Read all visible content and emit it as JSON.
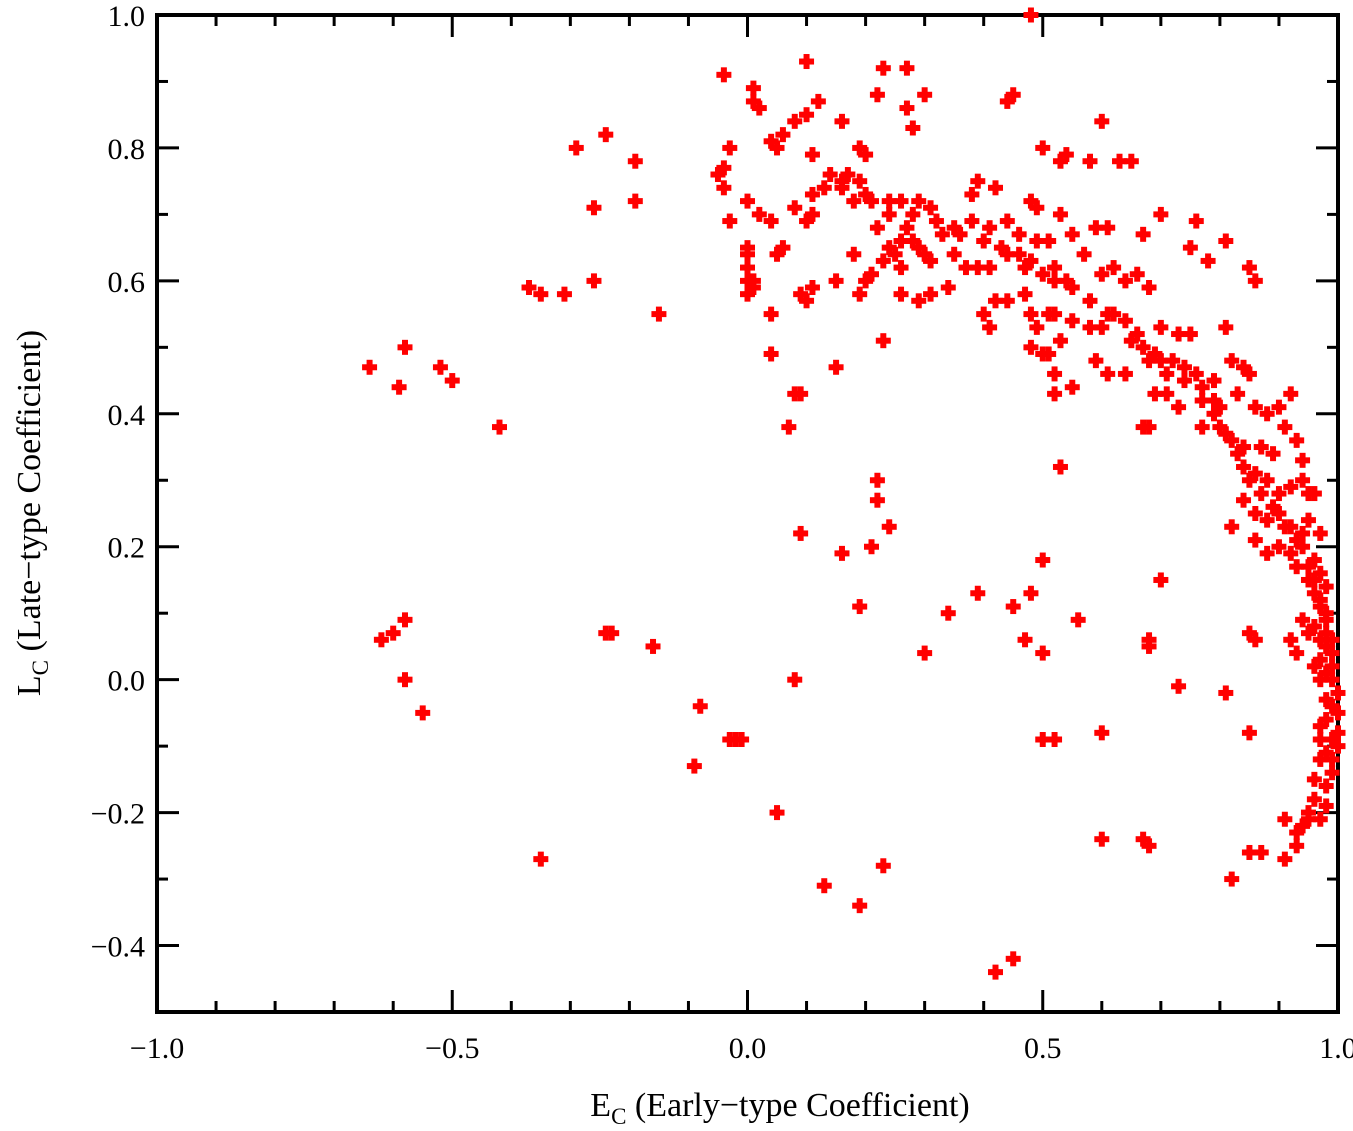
{
  "chart_data": {
    "type": "scatter",
    "title": "",
    "xlabel_main": "E",
    "xlabel_sub": "C",
    "xlabel_rest": " (Early−type Coefficient)",
    "ylabel_main": "L",
    "ylabel_sub": "C",
    "ylabel_rest": " (Late−type Coefficient)",
    "xlim": [
      -1.0,
      1.0
    ],
    "ylim": [
      -0.5,
      1.0
    ],
    "grid": false,
    "marker_color": "#ff0000",
    "marker": "plus",
    "x_ticks_major": [
      -1.0,
      -0.5,
      0.0,
      0.5,
      1.0
    ],
    "x_tick_labels": [
      "−1.0",
      "−0.5",
      "0.0",
      "0.5",
      "1.0"
    ],
    "y_ticks_major": [
      -0.4,
      -0.2,
      0.0,
      0.2,
      0.4,
      0.6,
      0.8,
      1.0
    ],
    "y_tick_labels": [
      "−0.4",
      "−0.2",
      "0.0",
      "0.2",
      "0.4",
      "0.6",
      "0.8",
      "1.0"
    ],
    "points": [
      [
        0.48,
        1.0
      ],
      [
        -0.04,
        0.91
      ],
      [
        0.1,
        0.93
      ],
      [
        0.23,
        0.92
      ],
      [
        0.27,
        0.92
      ],
      [
        0.01,
        0.89
      ],
      [
        0.01,
        0.87
      ],
      [
        0.02,
        0.86
      ],
      [
        0.12,
        0.87
      ],
      [
        0.1,
        0.85
      ],
      [
        0.22,
        0.88
      ],
      [
        0.3,
        0.88
      ],
      [
        0.45,
        0.88
      ],
      [
        0.44,
        0.87
      ],
      [
        0.27,
        0.86
      ],
      [
        0.08,
        0.84
      ],
      [
        0.06,
        0.82
      ],
      [
        0.04,
        0.81
      ],
      [
        0.16,
        0.84
      ],
      [
        0.28,
        0.83
      ],
      [
        0.6,
        0.84
      ],
      [
        0.05,
        0.8
      ],
      [
        -0.03,
        0.8
      ],
      [
        0.11,
        0.79
      ],
      [
        0.19,
        0.8
      ],
      [
        0.2,
        0.79
      ],
      [
        0.5,
        0.8
      ],
      [
        0.54,
        0.79
      ],
      [
        0.53,
        0.78
      ],
      [
        0.58,
        0.78
      ],
      [
        0.63,
        0.78
      ],
      [
        0.65,
        0.78
      ],
      [
        -0.29,
        0.8
      ],
      [
        -0.24,
        0.82
      ],
      [
        -0.19,
        0.78
      ],
      [
        -0.04,
        0.77
      ],
      [
        -0.05,
        0.76
      ],
      [
        0.14,
        0.76
      ],
      [
        0.17,
        0.76
      ],
      [
        0.19,
        0.75
      ],
      [
        0.16,
        0.74
      ],
      [
        -0.04,
        0.74
      ],
      [
        0.0,
        0.72
      ],
      [
        -0.26,
        0.71
      ],
      [
        -0.19,
        0.72
      ],
      [
        0.11,
        0.73
      ],
      [
        0.13,
        0.74
      ],
      [
        0.18,
        0.72
      ],
      [
        0.21,
        0.72
      ],
      [
        0.26,
        0.72
      ],
      [
        0.29,
        0.72
      ],
      [
        0.31,
        0.71
      ],
      [
        0.38,
        0.73
      ],
      [
        0.39,
        0.75
      ],
      [
        0.42,
        0.74
      ],
      [
        0.48,
        0.72
      ],
      [
        0.49,
        0.71
      ],
      [
        0.53,
        0.7
      ],
      [
        0.7,
        0.7
      ],
      [
        0.76,
        0.69
      ],
      [
        0.08,
        0.71
      ],
      [
        0.1,
        0.69
      ],
      [
        0.02,
        0.7
      ],
      [
        -0.03,
        0.69
      ],
      [
        0.04,
        0.69
      ],
      [
        0.11,
        0.7
      ],
      [
        0.22,
        0.68
      ],
      [
        0.24,
        0.7
      ],
      [
        0.27,
        0.68
      ],
      [
        0.28,
        0.66
      ],
      [
        0.25,
        0.64
      ],
      [
        0.23,
        0.63
      ],
      [
        0.26,
        0.62
      ],
      [
        0.33,
        0.67
      ],
      [
        0.35,
        0.68
      ],
      [
        0.38,
        0.69
      ],
      [
        0.41,
        0.68
      ],
      [
        0.44,
        0.69
      ],
      [
        0.46,
        0.67
      ],
      [
        0.49,
        0.66
      ],
      [
        0.51,
        0.66
      ],
      [
        0.55,
        0.67
      ],
      [
        0.59,
        0.68
      ],
      [
        0.61,
        0.68
      ],
      [
        0.67,
        0.67
      ],
      [
        0.81,
        0.66
      ],
      [
        0.75,
        0.65
      ],
      [
        0.78,
        0.63
      ],
      [
        0.0,
        0.65
      ],
      [
        0.0,
        0.64
      ],
      [
        0.0,
        0.62
      ],
      [
        0.01,
        0.6
      ],
      [
        0.01,
        0.59
      ],
      [
        0.0,
        0.58
      ],
      [
        0.0,
        0.6
      ],
      [
        0.06,
        0.65
      ],
      [
        0.05,
        0.64
      ],
      [
        0.11,
        0.59
      ],
      [
        0.09,
        0.58
      ],
      [
        0.1,
        0.57
      ],
      [
        0.18,
        0.64
      ],
      [
        0.2,
        0.6
      ],
      [
        0.19,
        0.58
      ],
      [
        0.21,
        0.61
      ],
      [
        0.24,
        0.65
      ],
      [
        0.26,
        0.66
      ],
      [
        0.29,
        0.65
      ],
      [
        0.3,
        0.64
      ],
      [
        0.31,
        0.63
      ],
      [
        0.35,
        0.64
      ],
      [
        0.37,
        0.62
      ],
      [
        0.39,
        0.62
      ],
      [
        0.41,
        0.62
      ],
      [
        0.43,
        0.65
      ],
      [
        0.46,
        0.64
      ],
      [
        0.47,
        0.62
      ],
      [
        0.5,
        0.61
      ],
      [
        0.52,
        0.62
      ],
      [
        0.54,
        0.6
      ],
      [
        0.57,
        0.64
      ],
      [
        0.6,
        0.61
      ],
      [
        0.62,
        0.62
      ],
      [
        0.64,
        0.6
      ],
      [
        0.66,
        0.61
      ],
      [
        0.68,
        0.59
      ],
      [
        0.85,
        0.62
      ],
      [
        0.86,
        0.6
      ],
      [
        -0.35,
        0.58
      ],
      [
        -0.37,
        0.59
      ],
      [
        -0.31,
        0.58
      ],
      [
        -0.26,
        0.6
      ],
      [
        -0.15,
        0.55
      ],
      [
        0.04,
        0.55
      ],
      [
        0.15,
        0.6
      ],
      [
        0.26,
        0.58
      ],
      [
        0.29,
        0.57
      ],
      [
        0.31,
        0.58
      ],
      [
        0.34,
        0.59
      ],
      [
        0.4,
        0.55
      ],
      [
        0.41,
        0.53
      ],
      [
        0.42,
        0.57
      ],
      [
        0.44,
        0.57
      ],
      [
        0.47,
        0.58
      ],
      [
        0.48,
        0.55
      ],
      [
        0.49,
        0.53
      ],
      [
        0.51,
        0.55
      ],
      [
        0.52,
        0.55
      ],
      [
        0.53,
        0.51
      ],
      [
        0.55,
        0.54
      ],
      [
        0.58,
        0.53
      ],
      [
        0.6,
        0.53
      ],
      [
        0.62,
        0.55
      ],
      [
        0.64,
        0.54
      ],
      [
        0.66,
        0.52
      ],
      [
        0.7,
        0.53
      ],
      [
        0.73,
        0.52
      ],
      [
        0.75,
        0.52
      ],
      [
        0.81,
        0.53
      ],
      [
        -0.64,
        0.47
      ],
      [
        -0.58,
        0.5
      ],
      [
        -0.59,
        0.44
      ],
      [
        -0.52,
        0.47
      ],
      [
        -0.5,
        0.45
      ],
      [
        -0.42,
        0.38
      ],
      [
        0.04,
        0.49
      ],
      [
        0.15,
        0.47
      ],
      [
        0.23,
        0.51
      ],
      [
        0.48,
        0.5
      ],
      [
        0.5,
        0.49
      ],
      [
        0.51,
        0.49
      ],
      [
        0.52,
        0.46
      ],
      [
        0.52,
        0.43
      ],
      [
        0.55,
        0.44
      ],
      [
        0.59,
        0.48
      ],
      [
        0.61,
        0.46
      ],
      [
        0.64,
        0.46
      ],
      [
        0.67,
        0.5
      ],
      [
        0.69,
        0.49
      ],
      [
        0.7,
        0.48
      ],
      [
        0.72,
        0.48
      ],
      [
        0.74,
        0.47
      ],
      [
        0.76,
        0.46
      ],
      [
        0.79,
        0.45
      ],
      [
        0.82,
        0.48
      ],
      [
        0.84,
        0.47
      ],
      [
        0.85,
        0.46
      ],
      [
        0.09,
        0.43
      ],
      [
        0.08,
        0.43
      ],
      [
        0.07,
        0.38
      ],
      [
        0.69,
        0.43
      ],
      [
        0.71,
        0.43
      ],
      [
        0.73,
        0.41
      ],
      [
        0.77,
        0.42
      ],
      [
        0.79,
        0.42
      ],
      [
        0.8,
        0.41
      ],
      [
        0.83,
        0.43
      ],
      [
        0.86,
        0.41
      ],
      [
        0.88,
        0.4
      ],
      [
        0.9,
        0.41
      ],
      [
        0.92,
        0.43
      ],
      [
        0.67,
        0.38
      ],
      [
        0.68,
        0.38
      ],
      [
        0.77,
        0.38
      ],
      [
        0.8,
        0.38
      ],
      [
        0.82,
        0.36
      ],
      [
        0.84,
        0.35
      ],
      [
        0.87,
        0.35
      ],
      [
        0.89,
        0.34
      ],
      [
        0.91,
        0.38
      ],
      [
        0.93,
        0.36
      ],
      [
        0.94,
        0.33
      ],
      [
        0.84,
        0.32
      ],
      [
        0.86,
        0.31
      ],
      [
        0.88,
        0.3
      ],
      [
        0.9,
        0.28
      ],
      [
        0.92,
        0.29
      ],
      [
        0.94,
        0.3
      ],
      [
        0.95,
        0.28
      ],
      [
        0.96,
        0.28
      ],
      [
        0.53,
        0.32
      ],
      [
        0.22,
        0.3
      ],
      [
        0.22,
        0.27
      ],
      [
        0.21,
        0.2
      ],
      [
        0.24,
        0.23
      ],
      [
        0.09,
        0.22
      ],
      [
        0.16,
        0.19
      ],
      [
        0.84,
        0.27
      ],
      [
        0.86,
        0.25
      ],
      [
        0.88,
        0.24
      ],
      [
        0.9,
        0.25
      ],
      [
        0.92,
        0.23
      ],
      [
        0.94,
        0.22
      ],
      [
        0.95,
        0.24
      ],
      [
        0.97,
        0.22
      ],
      [
        0.82,
        0.23
      ],
      [
        0.86,
        0.21
      ],
      [
        0.88,
        0.19
      ],
      [
        0.9,
        0.2
      ],
      [
        0.92,
        0.19
      ],
      [
        0.93,
        0.17
      ],
      [
        0.94,
        0.2
      ],
      [
        0.96,
        0.18
      ],
      [
        0.97,
        0.16
      ],
      [
        0.98,
        0.14
      ],
      [
        0.96,
        0.13
      ],
      [
        0.95,
        0.15
      ],
      [
        0.97,
        0.11
      ],
      [
        0.98,
        0.1
      ],
      [
        0.96,
        0.08
      ],
      [
        0.97,
        0.06
      ],
      [
        0.98,
        0.07
      ],
      [
        0.99,
        0.04
      ],
      [
        0.97,
        0.03
      ],
      [
        0.96,
        0.02
      ],
      [
        0.98,
        0.01
      ],
      [
        0.99,
        0.0
      ],
      [
        1.0,
        -0.02
      ],
      [
        0.99,
        -0.04
      ],
      [
        0.98,
        -0.06
      ],
      [
        0.97,
        -0.07
      ],
      [
        0.99,
        -0.09
      ],
      [
        0.98,
        -0.11
      ],
      [
        0.97,
        -0.12
      ],
      [
        0.99,
        -0.14
      ],
      [
        0.98,
        -0.16
      ],
      [
        0.96,
        -0.18
      ],
      [
        0.95,
        -0.2
      ],
      [
        0.97,
        -0.21
      ],
      [
        0.94,
        -0.22
      ],
      [
        0.93,
        -0.25
      ],
      [
        0.91,
        -0.27
      ],
      [
        0.93,
        -0.23
      ],
      [
        0.95,
        -0.21
      ],
      [
        0.98,
        -0.19
      ],
      [
        1.0,
        -0.08
      ],
      [
        1.0,
        -0.05
      ],
      [
        0.99,
        0.02
      ],
      [
        0.98,
        0.05
      ],
      [
        0.95,
        0.07
      ],
      [
        0.94,
        0.09
      ],
      [
        0.93,
        0.04
      ],
      [
        0.92,
        0.06
      ],
      [
        0.86,
        0.06
      ],
      [
        0.85,
        0.07
      ],
      [
        0.5,
        0.18
      ],
      [
        0.7,
        0.15
      ],
      [
        0.48,
        0.13
      ],
      [
        0.39,
        0.13
      ],
      [
        0.45,
        0.11
      ],
      [
        0.34,
        0.1
      ],
      [
        0.19,
        0.11
      ],
      [
        0.56,
        0.09
      ],
      [
        0.47,
        0.06
      ],
      [
        0.5,
        0.04
      ],
      [
        0.3,
        0.04
      ],
      [
        0.68,
        0.06
      ],
      [
        0.68,
        0.05
      ],
      [
        -0.58,
        0.09
      ],
      [
        -0.62,
        0.06
      ],
      [
        -0.6,
        0.07
      ],
      [
        -0.23,
        0.07
      ],
      [
        -0.24,
        0.07
      ],
      [
        -0.16,
        0.05
      ],
      [
        0.08,
        0.0
      ],
      [
        -0.58,
        0.0
      ],
      [
        -0.55,
        -0.05
      ],
      [
        -0.08,
        -0.04
      ],
      [
        -0.03,
        -0.09
      ],
      [
        -0.01,
        -0.09
      ],
      [
        -0.02,
        -0.09
      ],
      [
        -0.09,
        -0.13
      ],
      [
        0.73,
        -0.01
      ],
      [
        0.81,
        -0.02
      ],
      [
        0.5,
        -0.09
      ],
      [
        0.52,
        -0.09
      ],
      [
        0.6,
        -0.08
      ],
      [
        0.85,
        -0.08
      ],
      [
        0.05,
        -0.2
      ],
      [
        0.6,
        -0.24
      ],
      [
        0.67,
        -0.24
      ],
      [
        0.68,
        -0.25
      ],
      [
        0.85,
        -0.26
      ],
      [
        0.87,
        -0.26
      ],
      [
        0.82,
        -0.3
      ],
      [
        -0.35,
        -0.27
      ],
      [
        0.13,
        -0.31
      ],
      [
        0.23,
        -0.28
      ],
      [
        0.19,
        -0.34
      ],
      [
        0.42,
        -0.44
      ],
      [
        0.45,
        -0.42
      ],
      [
        0.91,
        -0.21
      ],
      [
        0.96,
        -0.15
      ],
      [
        1.0,
        -0.1
      ],
      [
        0.99,
        -0.12
      ],
      [
        0.97,
        -0.09
      ],
      [
        0.98,
        -0.03
      ],
      [
        0.97,
        0.0
      ],
      [
        0.99,
        0.06
      ],
      [
        0.98,
        0.09
      ],
      [
        0.97,
        0.12
      ],
      [
        0.96,
        0.15
      ],
      [
        0.95,
        0.17
      ],
      [
        0.93,
        0.21
      ],
      [
        0.91,
        0.23
      ],
      [
        0.89,
        0.26
      ],
      [
        0.87,
        0.28
      ],
      [
        0.85,
        0.3
      ],
      [
        0.83,
        0.34
      ],
      [
        0.81,
        0.37
      ],
      [
        0.79,
        0.4
      ],
      [
        0.77,
        0.44
      ],
      [
        0.74,
        0.45
      ],
      [
        0.71,
        0.46
      ],
      [
        0.68,
        0.48
      ],
      [
        0.65,
        0.51
      ],
      [
        0.61,
        0.55
      ],
      [
        0.58,
        0.57
      ],
      [
        0.55,
        0.59
      ],
      [
        0.52,
        0.6
      ],
      [
        0.48,
        0.63
      ],
      [
        0.44,
        0.64
      ],
      [
        0.4,
        0.66
      ],
      [
        0.36,
        0.67
      ],
      [
        0.32,
        0.69
      ],
      [
        0.28,
        0.7
      ],
      [
        0.24,
        0.72
      ],
      [
        0.2,
        0.73
      ],
      [
        0.16,
        0.75
      ]
    ]
  }
}
